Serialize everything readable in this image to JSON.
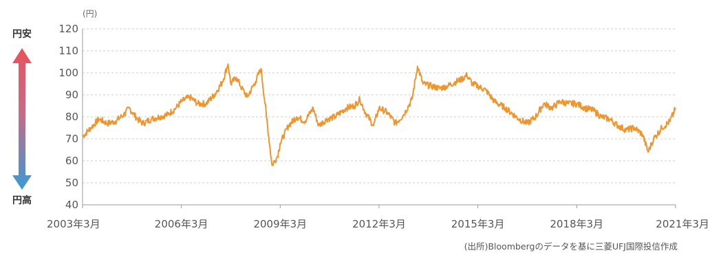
{
  "chart_data": {
    "type": "line",
    "title": "",
    "y_unit": "(円)",
    "ylim": [
      40,
      120
    ],
    "y_ticks": [
      40,
      50,
      60,
      70,
      80,
      90,
      100,
      110,
      120
    ],
    "x_range": [
      "2003-03",
      "2021-03"
    ],
    "x_ticks": [
      "2003年3月",
      "2006年3月",
      "2009年3月",
      "2012年3月",
      "2015年3月",
      "2018年3月",
      "2021年3月"
    ],
    "grid": true,
    "series_color": "#f0952e",
    "arrow_top_color": "#e8525d",
    "arrow_bottom_color": "#3a9ad6",
    "series": [
      {
        "points": [
          [
            "2003-03",
            71
          ],
          [
            "2003-06",
            75
          ],
          [
            "2003-09",
            79
          ],
          [
            "2003-12",
            77
          ],
          [
            "2004-03",
            78
          ],
          [
            "2004-06",
            81
          ],
          [
            "2004-08",
            84
          ],
          [
            "2004-11",
            79
          ],
          [
            "2005-01",
            77
          ],
          [
            "2005-04",
            79
          ],
          [
            "2005-07",
            80
          ],
          [
            "2005-10",
            81
          ],
          [
            "2006-01",
            84
          ],
          [
            "2006-03",
            87
          ],
          [
            "2006-06",
            89
          ],
          [
            "2006-09",
            86
          ],
          [
            "2006-12",
            86
          ],
          [
            "2007-03",
            90
          ],
          [
            "2007-06",
            96
          ],
          [
            "2007-08",
            104
          ],
          [
            "2007-09",
            95
          ],
          [
            "2007-11",
            98
          ],
          [
            "2008-01",
            93
          ],
          [
            "2008-03",
            89
          ],
          [
            "2008-06",
            96
          ],
          [
            "2008-08",
            102
          ],
          [
            "2008-10",
            80
          ],
          [
            "2008-12",
            58
          ],
          [
            "2009-02",
            62
          ],
          [
            "2009-03",
            68
          ],
          [
            "2009-06",
            76
          ],
          [
            "2009-09",
            80
          ],
          [
            "2009-12",
            78
          ],
          [
            "2010-03",
            84
          ],
          [
            "2010-05",
            76
          ],
          [
            "2010-08",
            79
          ],
          [
            "2010-11",
            80
          ],
          [
            "2011-03",
            84
          ],
          [
            "2011-06",
            85
          ],
          [
            "2011-08",
            88
          ],
          [
            "2011-10",
            82
          ],
          [
            "2012-01",
            76
          ],
          [
            "2012-03",
            84
          ],
          [
            "2012-06",
            82
          ],
          [
            "2012-09",
            77
          ],
          [
            "2012-12",
            81
          ],
          [
            "2013-03",
            88
          ],
          [
            "2013-05",
            103
          ],
          [
            "2013-07",
            95
          ],
          [
            "2013-10",
            94
          ],
          [
            "2014-01",
            93
          ],
          [
            "2014-04",
            94
          ],
          [
            "2014-07",
            96
          ],
          [
            "2014-09",
            97
          ],
          [
            "2014-11",
            99
          ],
          [
            "2015-01",
            95
          ],
          [
            "2015-03",
            94
          ],
          [
            "2015-06",
            92
          ],
          [
            "2015-09",
            87
          ],
          [
            "2016-01",
            84
          ],
          [
            "2016-06",
            79
          ],
          [
            "2016-09",
            77
          ],
          [
            "2016-12",
            80
          ],
          [
            "2017-03",
            86
          ],
          [
            "2017-06",
            84
          ],
          [
            "2017-09",
            87
          ],
          [
            "2017-12",
            86
          ],
          [
            "2018-03",
            86
          ],
          [
            "2018-06",
            84
          ],
          [
            "2018-09",
            83
          ],
          [
            "2018-12",
            80
          ],
          [
            "2019-03",
            79
          ],
          [
            "2019-06",
            76
          ],
          [
            "2019-09",
            74
          ],
          [
            "2019-12",
            75
          ],
          [
            "2020-03",
            72
          ],
          [
            "2020-05",
            64
          ],
          [
            "2020-07",
            70
          ],
          [
            "2020-10",
            75
          ],
          [
            "2021-01",
            78
          ],
          [
            "2021-03",
            84
          ]
        ]
      }
    ]
  },
  "labels": {
    "top": "円安",
    "bottom": "円高",
    "source": "(出所)Bloombergのデータを基に三菱UFJ国際投信作成"
  }
}
